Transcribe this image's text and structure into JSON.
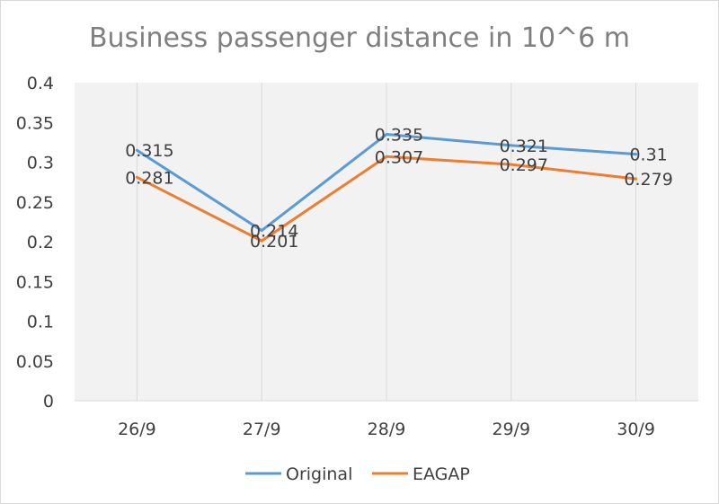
{
  "chart_data": {
    "type": "line",
    "title": "Business passenger distance in 10^6 m",
    "xlabel": "",
    "ylabel": "",
    "categories": [
      "26/9",
      "27/9",
      "28/9",
      "29/9",
      "30/9"
    ],
    "ylim": [
      0,
      0.4
    ],
    "yticks": [
      "0",
      "0.05",
      "0.1",
      "0.15",
      "0.2",
      "0.25",
      "0.3",
      "0.35",
      "0.4"
    ],
    "ytick_values": [
      0,
      0.05,
      0.1,
      0.15,
      0.2,
      0.25,
      0.3,
      0.35,
      0.4
    ],
    "grid": "vertical",
    "legend_position": "bottom",
    "series": [
      {
        "name": "Original",
        "color": "#5b9bd5",
        "values": [
          0.315,
          0.214,
          0.335,
          0.321,
          0.31
        ],
        "labels": [
          "0.315",
          "0.214",
          "0.335",
          "0.321",
          "0.31"
        ]
      },
      {
        "name": "EAGAP",
        "color": "#ed7d31",
        "values": [
          0.281,
          0.201,
          0.307,
          0.297,
          0.279
        ],
        "labels": [
          "0.281",
          "0.201",
          "0.307",
          "0.297",
          "0.279"
        ]
      }
    ]
  }
}
